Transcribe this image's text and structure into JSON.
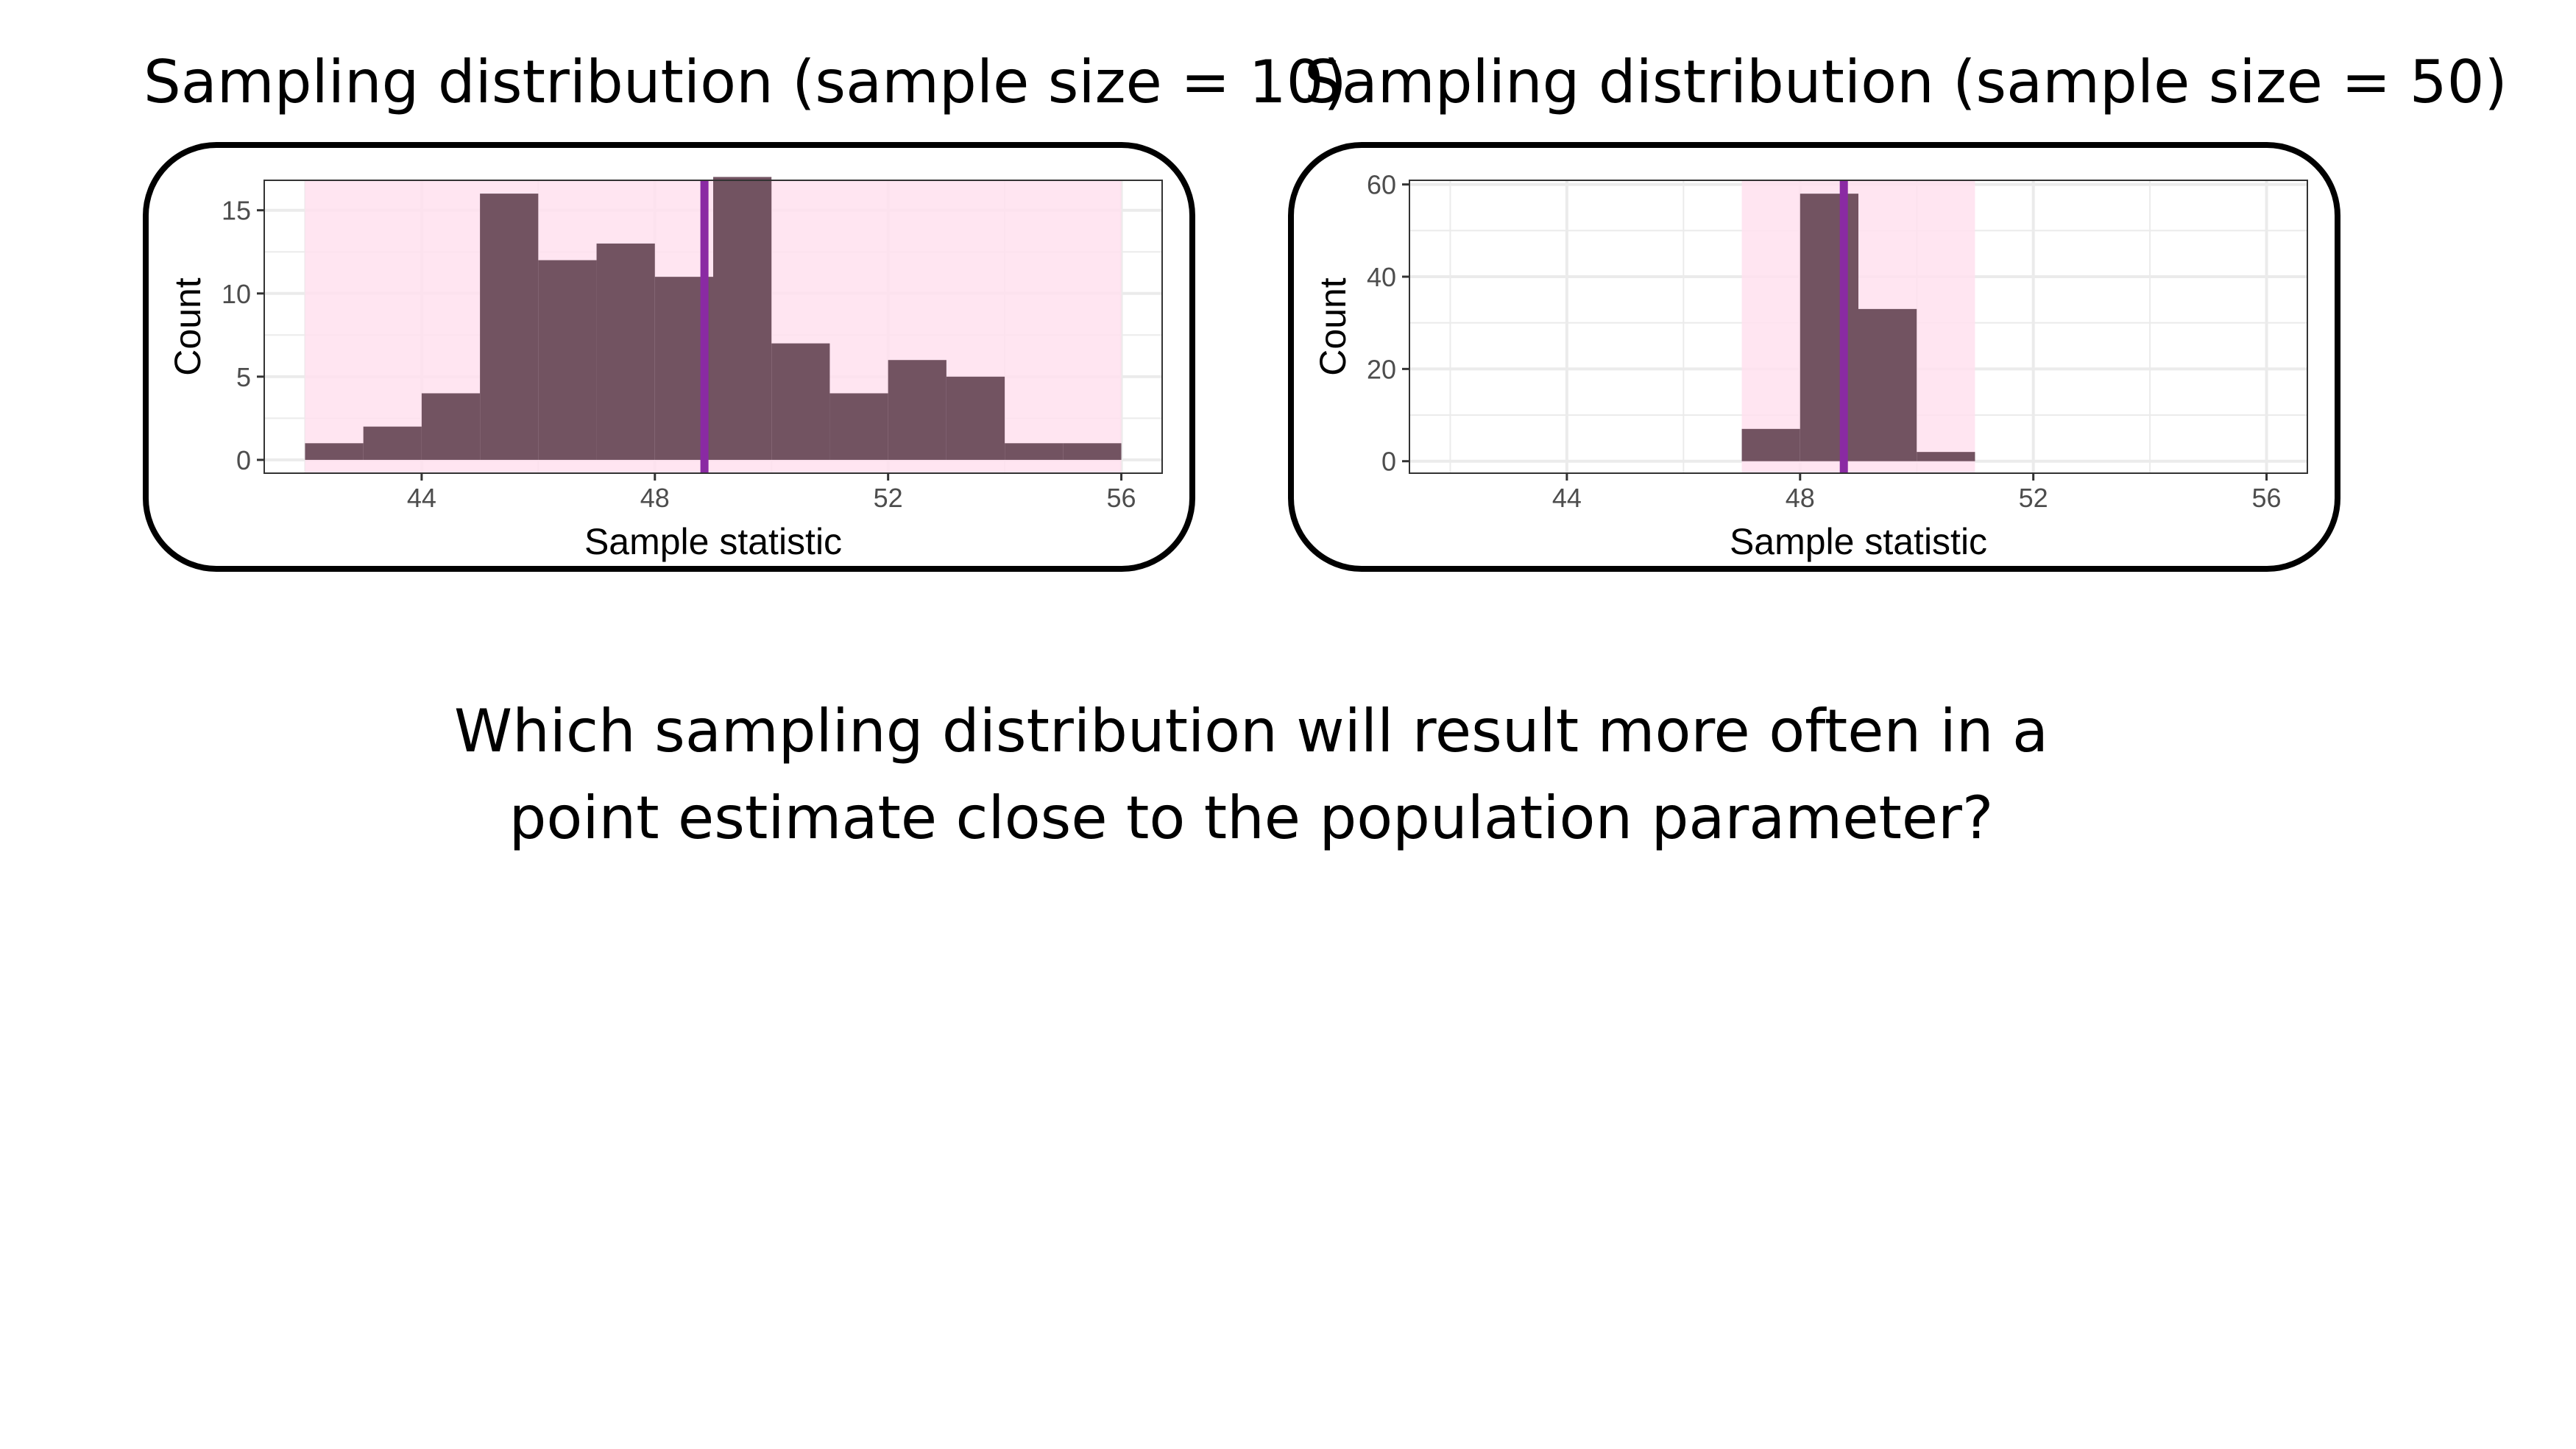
{
  "question": {
    "line1": "Which sampling distribution will result more often in a",
    "line2": "point estimate close to the population parameter?"
  },
  "colors": {
    "bar_fill": "#725361",
    "shade_fill": "#ffe1ef",
    "vline": "#8a2aa3",
    "grid": "#ebebeb",
    "panel_border": "#000000"
  },
  "chart_data": [
    {
      "type": "bar",
      "title": "Sampling distribution (sample size = 10)",
      "xlabel": "Sample statistic",
      "ylabel": "Count",
      "xlim": [
        41.3,
        56.7
      ],
      "ylim": [
        -0.8,
        16.8
      ],
      "xticks": [
        44,
        48,
        52,
        56
      ],
      "yticks": [
        0,
        5,
        10,
        15
      ],
      "shaded_range": [
        42,
        56
      ],
      "vline": 48.85,
      "bin_width": 1,
      "bins": [
        {
          "x0": 42,
          "x1": 43,
          "count": 1
        },
        {
          "x0": 43,
          "x1": 44,
          "count": 2
        },
        {
          "x0": 44,
          "x1": 45,
          "count": 4
        },
        {
          "x0": 45,
          "x1": 46,
          "count": 16
        },
        {
          "x0": 46,
          "x1": 47,
          "count": 12
        },
        {
          "x0": 47,
          "x1": 48,
          "count": 13
        },
        {
          "x0": 48,
          "x1": 49,
          "count": 11
        },
        {
          "x0": 49,
          "x1": 50,
          "count": 17
        },
        {
          "x0": 50,
          "x1": 51,
          "count": 7
        },
        {
          "x0": 51,
          "x1": 52,
          "count": 4
        },
        {
          "x0": 52,
          "x1": 53,
          "count": 6
        },
        {
          "x0": 53,
          "x1": 54,
          "count": 5
        },
        {
          "x0": 54,
          "x1": 55,
          "count": 1
        },
        {
          "x0": 55,
          "x1": 56,
          "count": 1
        }
      ],
      "grid": true
    },
    {
      "type": "bar",
      "title": "Sampling distribution (sample size = 50)",
      "xlabel": "Sample statistic",
      "ylabel": "Count",
      "xlim": [
        41.3,
        56.7
      ],
      "ylim": [
        -2.6,
        60.9
      ],
      "xticks": [
        44,
        48,
        52,
        56
      ],
      "yticks": [
        0,
        20,
        40,
        60
      ],
      "shaded_range": [
        47,
        51
      ],
      "vline": 48.75,
      "bin_width": 1,
      "bins": [
        {
          "x0": 47,
          "x1": 48,
          "count": 7
        },
        {
          "x0": 48,
          "x1": 49,
          "count": 58
        },
        {
          "x0": 49,
          "x1": 50,
          "count": 33
        },
        {
          "x0": 50,
          "x1": 51,
          "count": 2
        }
      ],
      "grid": true
    }
  ]
}
